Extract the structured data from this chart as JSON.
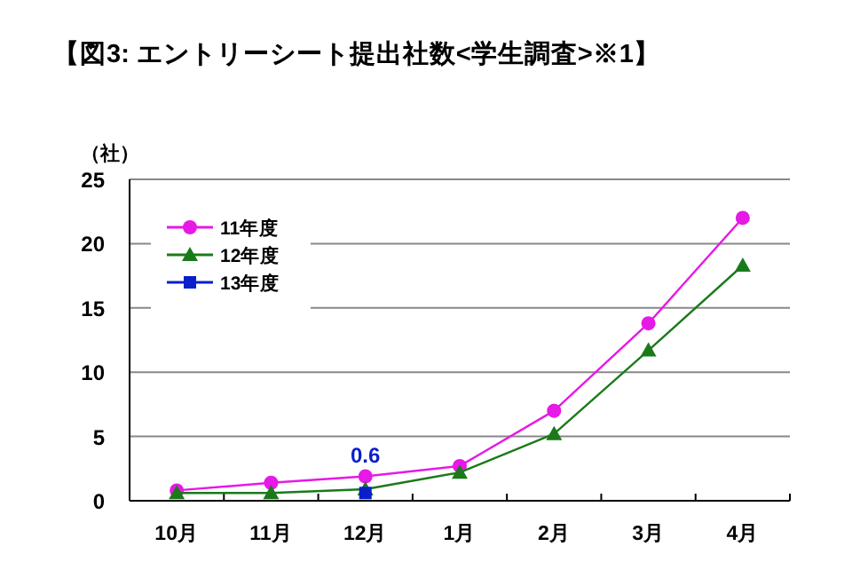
{
  "chart_data": {
    "type": "line",
    "title": "【図3: エントリーシート提出社数<学生調査>※1】",
    "ylabel": "（社）",
    "categories": [
      "10月",
      "11月",
      "12月",
      "1月",
      "2月",
      "3月",
      "4月"
    ],
    "series": [
      {
        "name": "11年度",
        "color": "#e619e6",
        "marker": "circle",
        "values": [
          0.8,
          1.4,
          1.9,
          2.7,
          7.0,
          13.8,
          22.0
        ]
      },
      {
        "name": "12年度",
        "color": "#1a7a1a",
        "marker": "triangle",
        "values": [
          0.6,
          0.6,
          0.9,
          2.2,
          5.2,
          11.7,
          18.3
        ]
      },
      {
        "name": "13年度",
        "color": "#0a1ecc",
        "marker": "square",
        "values": [
          null,
          null,
          0.6,
          null,
          null,
          null,
          null
        ],
        "value_labels": [
          null,
          null,
          "0.6",
          null,
          null,
          null,
          null
        ]
      }
    ],
    "ylim": [
      0,
      25
    ],
    "yticks": [
      0,
      5,
      10,
      15,
      20,
      25
    ],
    "grid": "y",
    "legend": "top left"
  }
}
